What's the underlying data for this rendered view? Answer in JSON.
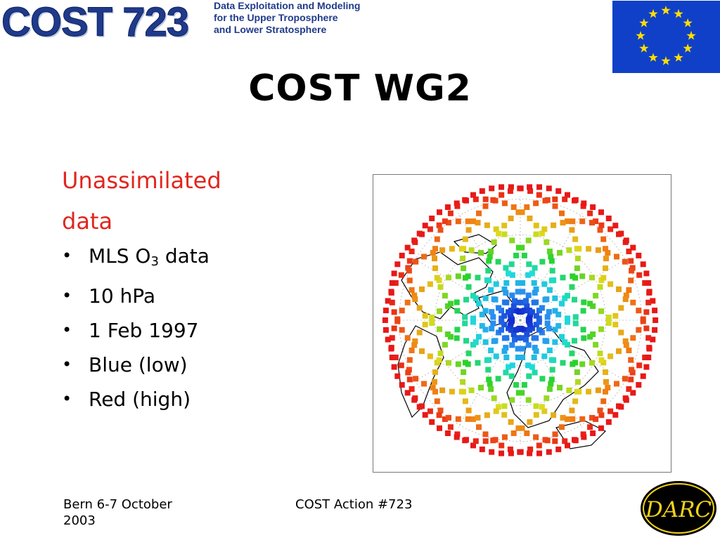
{
  "header": {
    "logo_main": "COST 723",
    "logo_lines": [
      "Data Exploitation and Modeling",
      "for the Upper Troposphere",
      "and Lower Stratosphere"
    ]
  },
  "title": "COST WG2",
  "subheading": "Unassimilated data",
  "bullets": [
    {
      "text": "MLS O",
      "sub": "3",
      "after": " data"
    },
    {
      "text": "10 hPa"
    },
    {
      "text": "1 Feb 1997"
    },
    {
      "text": "Blue (low)"
    },
    {
      "text": "Red (high)"
    }
  ],
  "bullet_glyph": "•",
  "footer": {
    "left": "Bern 6-7 October 2003",
    "center": "COST Action #723",
    "logo": "DARC"
  },
  "colors": {
    "title": "#000000",
    "subheading": "#e0261f",
    "eu_flag_blue": "#1040c8",
    "eu_star": "#ffdd00",
    "scale_low": "#1020c8",
    "scale_high": "#e81818"
  }
}
